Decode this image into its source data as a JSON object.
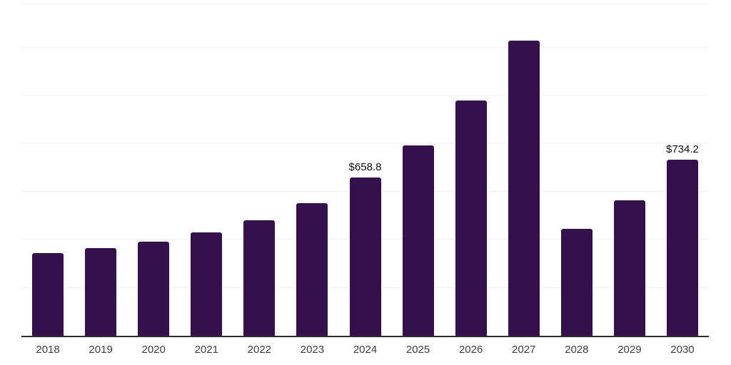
{
  "chart_data": {
    "type": "bar",
    "title": "",
    "xlabel": "",
    "ylabel": "",
    "categories": [
      "2018",
      "2019",
      "2020",
      "2021",
      "2022",
      "2023",
      "2024",
      "2025",
      "2026",
      "2027",
      "2028",
      "2029",
      "2030"
    ],
    "values": [
      345,
      366,
      392,
      429,
      481,
      553,
      658.8,
      793,
      978,
      1228,
      446,
      565,
      734.2
    ],
    "point_labels": [
      "",
      "",
      "",
      "",
      "",
      "",
      "$658.8",
      "",
      "",
      "",
      "",
      "",
      "$734.2"
    ],
    "ylim": [
      0,
      1380
    ],
    "gridline_step": 200,
    "grid": "horizontal",
    "legend": false,
    "bar_color": "#34104d",
    "axis_line_color": "#2f2f2f",
    "gridline_color": "#f1f1f1",
    "tick_label_color": "#3f3f3f",
    "value_label_color": "#111111",
    "background_color": "#ffffff"
  }
}
